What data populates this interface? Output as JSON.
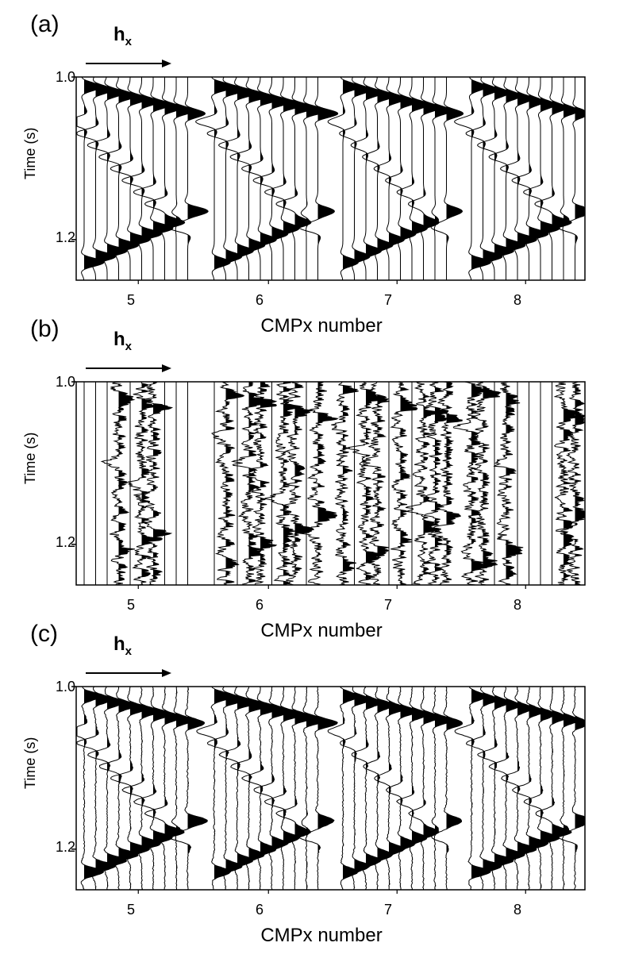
{
  "chart_data": [
    {
      "type": "wiggle",
      "panel_label": "(a)",
      "offset_axis_label": "h",
      "offset_axis_subscript": "x",
      "ylabel": "Time (s)",
      "xlabel": "CMPx number",
      "ylim": [
        1.0,
        1.25
      ],
      "yticks": [
        "1.0",
        "1.2"
      ],
      "ytick_values": [
        1.0,
        1.2
      ],
      "groups": [
        "5",
        "6",
        "7",
        "8"
      ],
      "traces_per_group": 10,
      "missing_traces": [],
      "events": [
        {
          "t0": 1.012,
          "t_end": 1.045,
          "polarity": 1
        },
        {
          "t0": 1.055,
          "t_end": 1.185,
          "polarity": -1
        },
        {
          "t0": 1.228,
          "t_end": 1.165,
          "polarity": 1
        }
      ],
      "noise": 0
    },
    {
      "type": "wiggle",
      "panel_label": "(b)",
      "offset_axis_label": "h",
      "offset_axis_subscript": "x",
      "ylabel": "Time (s)",
      "xlabel": "CMPx number",
      "ylim": [
        1.0,
        1.25
      ],
      "yticks": [
        "1.0",
        "1.2"
      ],
      "ytick_values": [
        1.0,
        1.2
      ],
      "groups": [
        "5",
        "6",
        "7",
        "8"
      ],
      "traces_per_group": 10,
      "missing_traces": [
        [
          0,
          1,
          2,
          4,
          7,
          8,
          9
        ],
        [
          0,
          2,
          5,
          8
        ],
        [
          1,
          4,
          6
        ],
        [
          2,
          4,
          5,
          6,
          7
        ]
      ],
      "events": [
        {
          "t0": 1.012,
          "t_end": 1.045,
          "polarity": 1
        },
        {
          "t0": 1.055,
          "t_end": 1.185,
          "polarity": -1
        },
        {
          "t0": 1.228,
          "t_end": 1.165,
          "polarity": 1
        }
      ],
      "noise": 0.6
    },
    {
      "type": "wiggle",
      "panel_label": "(c)",
      "offset_axis_label": "h",
      "offset_axis_subscript": "x",
      "ylabel": "Time (s)",
      "xlabel": "CMPx number",
      "ylim": [
        1.0,
        1.25
      ],
      "yticks": [
        "1.0",
        "1.2"
      ],
      "ytick_values": [
        1.0,
        1.2
      ],
      "groups": [
        "5",
        "6",
        "7",
        "8"
      ],
      "traces_per_group": 10,
      "missing_traces": [],
      "events": [
        {
          "t0": 1.012,
          "t_end": 1.045,
          "polarity": 1
        },
        {
          "t0": 1.055,
          "t_end": 1.185,
          "polarity": -1
        },
        {
          "t0": 1.228,
          "t_end": 1.165,
          "polarity": 1
        }
      ],
      "noise": 0.05
    }
  ]
}
